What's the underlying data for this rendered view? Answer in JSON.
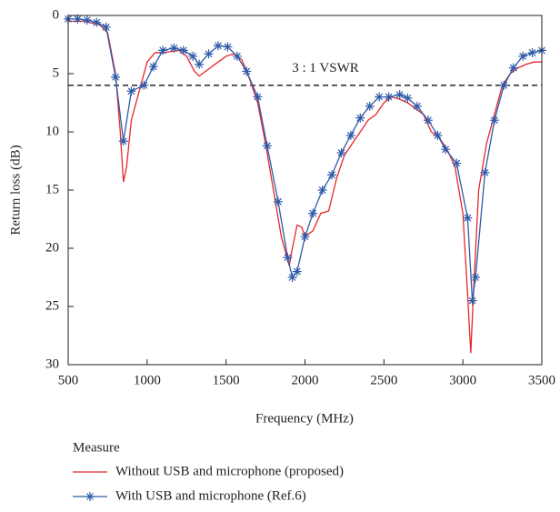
{
  "chart_data": {
    "type": "line",
    "xlabel": "Frequency (MHz)",
    "ylabel": "Return loss (dB)",
    "xlim": [
      500,
      3500
    ],
    "xticks": [
      500,
      1000,
      1500,
      2000,
      2500,
      3000,
      3500
    ],
    "ylim": [
      0,
      30
    ],
    "yticks": [
      0,
      5,
      10,
      15,
      20,
      25,
      30
    ],
    "y_inverted": true,
    "annotation": {
      "text": "3 : 1 VSWR",
      "y": 6
    },
    "legend_title": "Measure",
    "series": [
      {
        "name": "Without USB and microphone (proposed)",
        "color": "#e8262a",
        "marker": false,
        "x": [
          500,
          600,
          700,
          750,
          800,
          830,
          850,
          870,
          900,
          950,
          1000,
          1050,
          1100,
          1200,
          1250,
          1300,
          1330,
          1400,
          1450,
          1500,
          1550,
          1600,
          1650,
          1700,
          1750,
          1800,
          1850,
          1900,
          1920,
          1950,
          1980,
          2000,
          2050,
          2100,
          2150,
          2200,
          2250,
          2300,
          2350,
          2400,
          2450,
          2500,
          2550,
          2600,
          2650,
          2700,
          2750,
          2800,
          2850,
          2900,
          2950,
          3000,
          3030,
          3050,
          3070,
          3100,
          3150,
          3200,
          3250,
          3300,
          3350,
          3400,
          3450,
          3500
        ],
        "values": [
          0.5,
          0.5,
          0.8,
          1.5,
          5,
          10,
          14.3,
          13,
          9,
          6.5,
          4,
          3.2,
          3.2,
          3,
          3.5,
          4.8,
          5.2,
          4.5,
          4,
          3.5,
          3.3,
          3.8,
          5.5,
          7.5,
          11,
          15,
          19,
          21.5,
          20,
          18,
          18.2,
          19,
          18.5,
          17,
          16.8,
          14,
          12,
          11,
          10,
          9,
          8.5,
          7.5,
          7,
          7.2,
          7.5,
          8,
          8.5,
          10,
          10.5,
          11.5,
          13,
          17,
          24,
          29,
          23,
          15,
          11,
          8.5,
          6,
          5,
          4.5,
          4.2,
          4,
          4
        ]
      },
      {
        "name": "With USB and microphone (Ref.6)",
        "color": "#2f5aa8",
        "marker": true,
        "x": [
          500,
          560,
          620,
          680,
          740,
          800,
          850,
          900,
          980,
          1040,
          1100,
          1170,
          1230,
          1290,
          1330,
          1390,
          1450,
          1510,
          1570,
          1630,
          1700,
          1760,
          1830,
          1890,
          1920,
          1950,
          2000,
          2050,
          2110,
          2170,
          2230,
          2290,
          2350,
          2410,
          2470,
          2530,
          2600,
          2650,
          2710,
          2780,
          2840,
          2890,
          2960,
          3030,
          3060,
          3080,
          3140,
          3200,
          3260,
          3320,
          3380,
          3440,
          3500
        ],
        "values": [
          0.3,
          0.3,
          0.4,
          0.6,
          1,
          5.3,
          10.8,
          6.5,
          6,
          4.4,
          3,
          2.8,
          3,
          3.5,
          4.2,
          3.3,
          2.6,
          2.7,
          3.5,
          4.8,
          7,
          11.2,
          16,
          20.8,
          22.5,
          22,
          19,
          17,
          15,
          13.7,
          11.8,
          10.3,
          8.8,
          7.8,
          7,
          7,
          6.8,
          7.1,
          7.8,
          9,
          10.3,
          11.5,
          12.7,
          17.4,
          24.5,
          22.5,
          13.5,
          9,
          6,
          4.5,
          3.5,
          3.2,
          3
        ]
      }
    ]
  }
}
